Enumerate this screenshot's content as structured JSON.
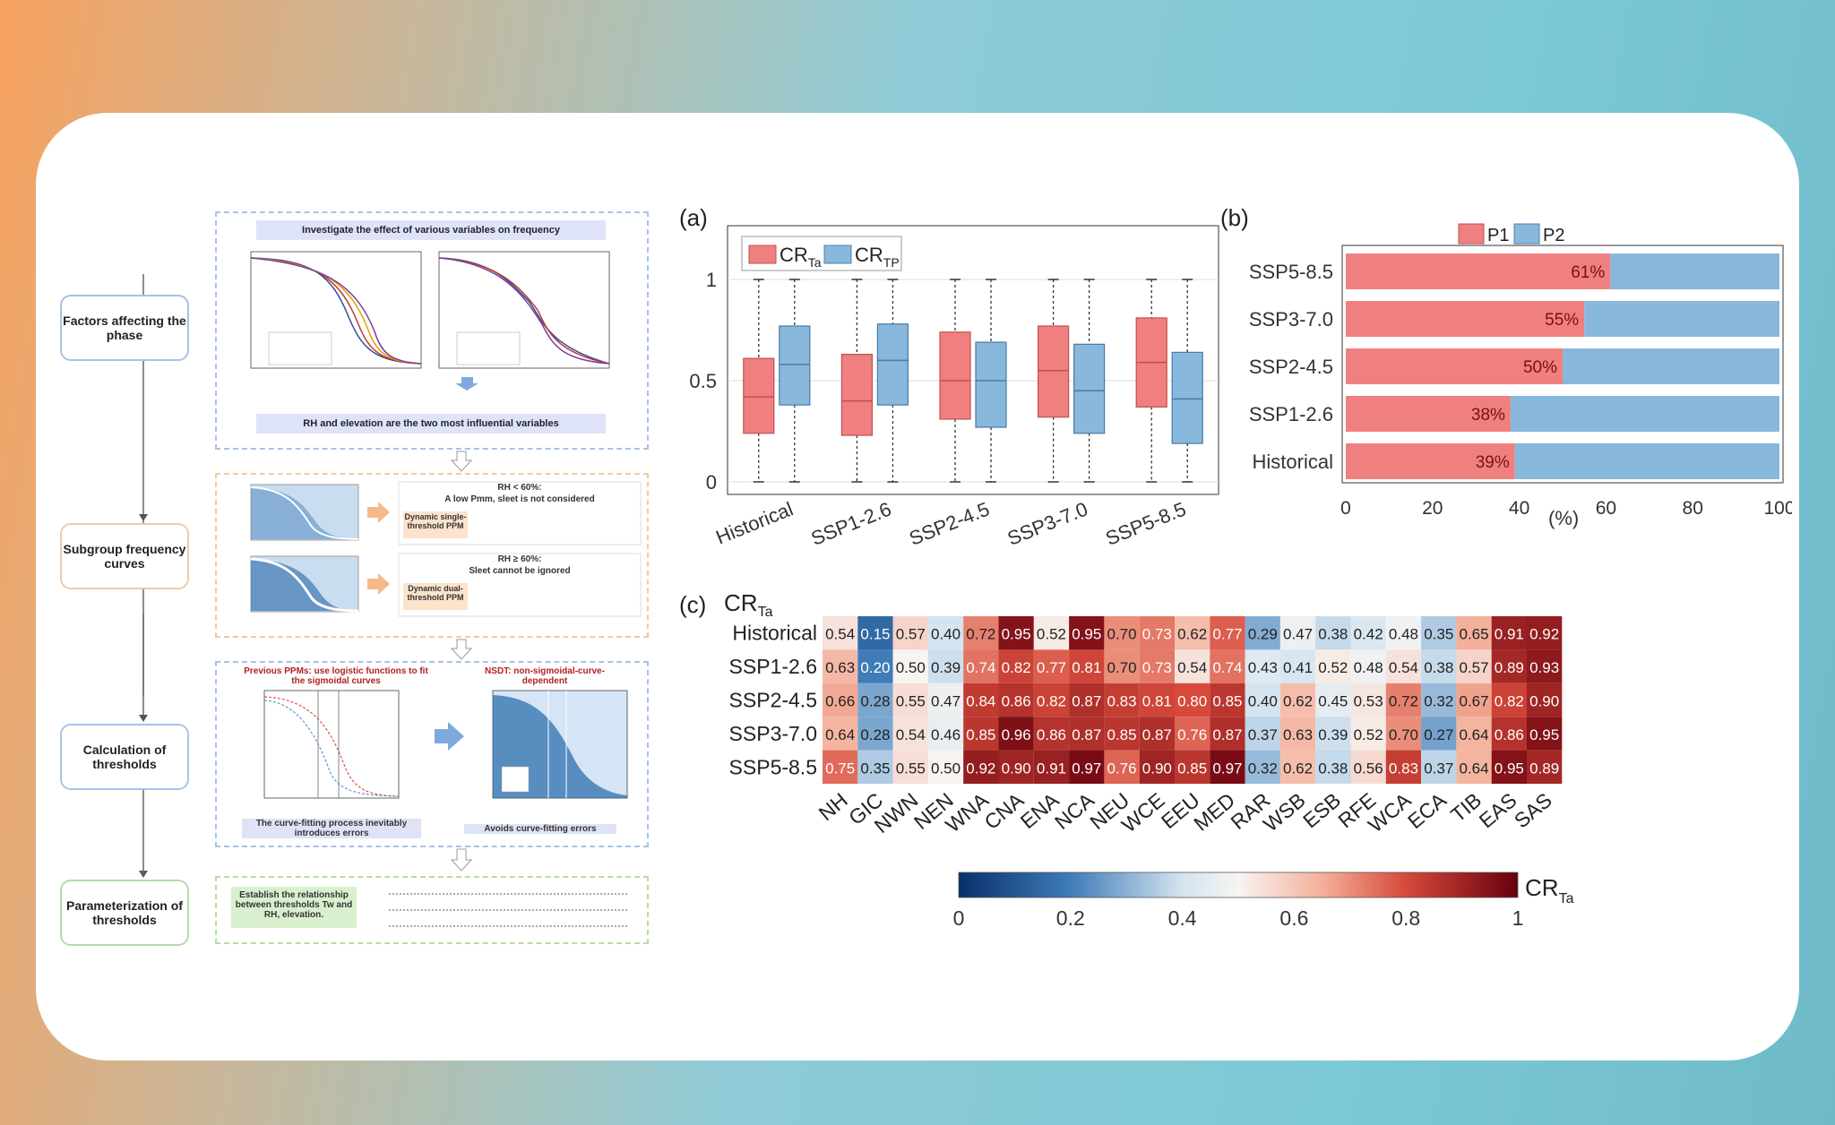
{
  "flowchart": {
    "steps": [
      "Factors affecting the phase",
      "Subgroup frequency curves",
      "Calculation of thresholds",
      "Parameterization of thresholds"
    ],
    "section1_top": "Investigate the effect of various variables on frequency",
    "section1_bottom": "RH and elevation are the two most influential variables",
    "rh_low": "RH < 60%:",
    "rh_low_note": "A low Pmm, sleet is not considered",
    "single_ppm": "Dynamic single-threshold PPM",
    "rh_high": "RH ≥ 60%:",
    "rh_high_note": "Sleet cannot be ignored",
    "dual_ppm": "Dynamic dual-threshold PPM",
    "prev_ppm": "Previous PPMs: use logistic functions to fit the sigmoidal curves",
    "nsdt": "NSDT: non-sigmoidal-curve-dependent",
    "fit_error": "The curve-fitting process inevitably introduces errors",
    "avoid_error": "Avoids curve-fitting errors",
    "establish": "Establish the relationship between thresholds Tw and RH, elevation."
  },
  "panel_a": {
    "label": "(a)",
    "legend": [
      "CR_Ta",
      "CR_TP"
    ],
    "yticks": [
      "0",
      "0.5",
      "1"
    ]
  },
  "panel_b": {
    "label": "(b)",
    "legend": [
      "P1",
      "P2"
    ],
    "xlabel": "(%)",
    "xticks": [
      "0",
      "20",
      "40",
      "60",
      "80",
      "100"
    ]
  },
  "panel_c": {
    "label": "(c)",
    "title": "CR_Ta",
    "colorbar_label": "CR_Ta",
    "colorbar_ticks": [
      "0",
      "0.2",
      "0.4",
      "0.6",
      "0.8",
      "1"
    ]
  },
  "chart_data": [
    {
      "type": "box",
      "categories": [
        "Historical",
        "SSP1-2.6",
        "SSP2-4.5",
        "SSP3-7.0",
        "SSP5-8.5"
      ],
      "series": [
        {
          "name": "CR_Ta",
          "color": "#f08080",
          "q1": [
            0.24,
            0.23,
            0.31,
            0.32,
            0.37
          ],
          "median": [
            0.42,
            0.4,
            0.5,
            0.55,
            0.59
          ],
          "q3": [
            0.61,
            0.63,
            0.74,
            0.77,
            0.81
          ],
          "min": [
            0,
            0,
            0,
            0,
            0
          ],
          "max": [
            1,
            1,
            1,
            1,
            1
          ]
        },
        {
          "name": "CR_TP",
          "color": "#88b8dc",
          "q1": [
            0.38,
            0.38,
            0.27,
            0.24,
            0.19
          ],
          "median": [
            0.58,
            0.6,
            0.5,
            0.45,
            0.41
          ],
          "q3": [
            0.77,
            0.78,
            0.69,
            0.68,
            0.64
          ],
          "min": [
            0,
            0,
            0,
            0,
            0
          ],
          "max": [
            1,
            1,
            1,
            1,
            1
          ]
        }
      ],
      "ylim": [
        0,
        1
      ]
    },
    {
      "type": "bar",
      "orientation": "horizontal-stacked",
      "categories": [
        "SSP5-8.5",
        "SSP3-7.0",
        "SSP2-4.5",
        "SSP1-2.6",
        "Historical"
      ],
      "series": [
        {
          "name": "P1",
          "color": "#f08080",
          "values": [
            61,
            55,
            50,
            38,
            39
          ]
        },
        {
          "name": "P2",
          "color": "#88b8dc",
          "values": [
            39,
            45,
            50,
            62,
            61
          ]
        }
      ],
      "data_labels": [
        "61%",
        "55%",
        "50%",
        "38%",
        "39%"
      ],
      "xlim": [
        0,
        100
      ]
    },
    {
      "type": "heatmap",
      "rows": [
        "Historical",
        "SSP1-2.6",
        "SSP2-4.5",
        "SSP3-7.0",
        "SSP5-8.5"
      ],
      "columns": [
        "NH",
        "GIC",
        "NWN",
        "NEN",
        "WNA",
        "CNA",
        "ENA",
        "NCA",
        "NEU",
        "WCE",
        "EEU",
        "MED",
        "RAR",
        "WSB",
        "ESB",
        "RFE",
        "WCA",
        "ECA",
        "TIB",
        "EAS",
        "SAS"
      ],
      "values": [
        [
          0.54,
          0.15,
          0.57,
          0.4,
          0.72,
          0.95,
          0.52,
          0.95,
          0.7,
          0.73,
          0.62,
          0.77,
          0.29,
          0.47,
          0.38,
          0.42,
          0.48,
          0.35,
          0.65,
          0.91,
          0.92
        ],
        [
          0.63,
          0.2,
          0.5,
          0.39,
          0.74,
          0.82,
          0.77,
          0.81,
          0.7,
          0.73,
          0.54,
          0.74,
          0.43,
          0.41,
          0.52,
          0.48,
          0.54,
          0.38,
          0.57,
          0.89,
          0.93
        ],
        [
          0.66,
          0.28,
          0.55,
          0.47,
          0.84,
          0.86,
          0.82,
          0.87,
          0.83,
          0.81,
          0.8,
          0.85,
          0.4,
          0.62,
          0.45,
          0.53,
          0.72,
          0.32,
          0.67,
          0.82,
          0.9
        ],
        [
          0.64,
          0.28,
          0.54,
          0.46,
          0.85,
          0.96,
          0.86,
          0.87,
          0.85,
          0.87,
          0.76,
          0.87,
          0.37,
          0.63,
          0.39,
          0.52,
          0.7,
          0.27,
          0.64,
          0.86,
          0.95
        ],
        [
          0.75,
          0.35,
          0.55,
          0.5,
          0.92,
          0.9,
          0.91,
          0.97,
          0.76,
          0.9,
          0.85,
          0.97,
          0.32,
          0.62,
          0.38,
          0.56,
          0.83,
          0.37,
          0.64,
          0.95,
          0.89
        ]
      ],
      "value_labels": [
        [
          "0.54",
          "0.15",
          "0.57",
          "0.40",
          "0.72",
          "0.95",
          "0.52",
          "0.95",
          "0.70",
          "0.73",
          "0.62",
          "0.77",
          "0.29",
          "0.47",
          "0.38",
          "0.42",
          "0.48",
          "0.35",
          "0.65",
          "0.91",
          "0.92"
        ],
        [
          "0.63",
          "0.20",
          "0.50",
          "0.39",
          "0.74",
          "0.82",
          "0.77",
          "0.81",
          "0.70",
          "0.73",
          "0.54",
          "0.74",
          "0.43",
          "0.41",
          "0.52",
          "0.48",
          "0.54",
          "0.38",
          "0.57",
          "0.89",
          "0.93"
        ],
        [
          "0.66",
          "0.28",
          "0.55",
          "0.47",
          "0.84",
          "0.86",
          "0.82",
          "0.87",
          "0.83",
          "0.81",
          "0.80",
          "0.85",
          "0.40",
          "0.62",
          "0.45",
          "0.53",
          "0.72",
          "0.32",
          "0.67",
          "0.82",
          "0.90"
        ],
        [
          "0.64",
          "0.28",
          "0.54",
          "0.46",
          "0.85",
          "0.96",
          "0.86",
          "0.87",
          "0.85",
          "0.87",
          "0.76",
          "0.87",
          "0.37",
          "0.63",
          "0.39",
          "0.52",
          "0.70",
          "0.27",
          "0.64",
          "0.86",
          "0.95"
        ],
        [
          "0.75",
          "0.35",
          "0.55",
          "0.50",
          "0.92",
          "0.90",
          "0.91",
          "0.97",
          "0.76",
          "0.90",
          "0.85",
          "0.97",
          "0.32",
          "0.62",
          "0.38",
          "0.56",
          "0.83",
          "0.37",
          "0.64",
          "0.95",
          "0.89"
        ]
      ],
      "colormap": "blue-white-red",
      "range": [
        0,
        1
      ]
    }
  ]
}
